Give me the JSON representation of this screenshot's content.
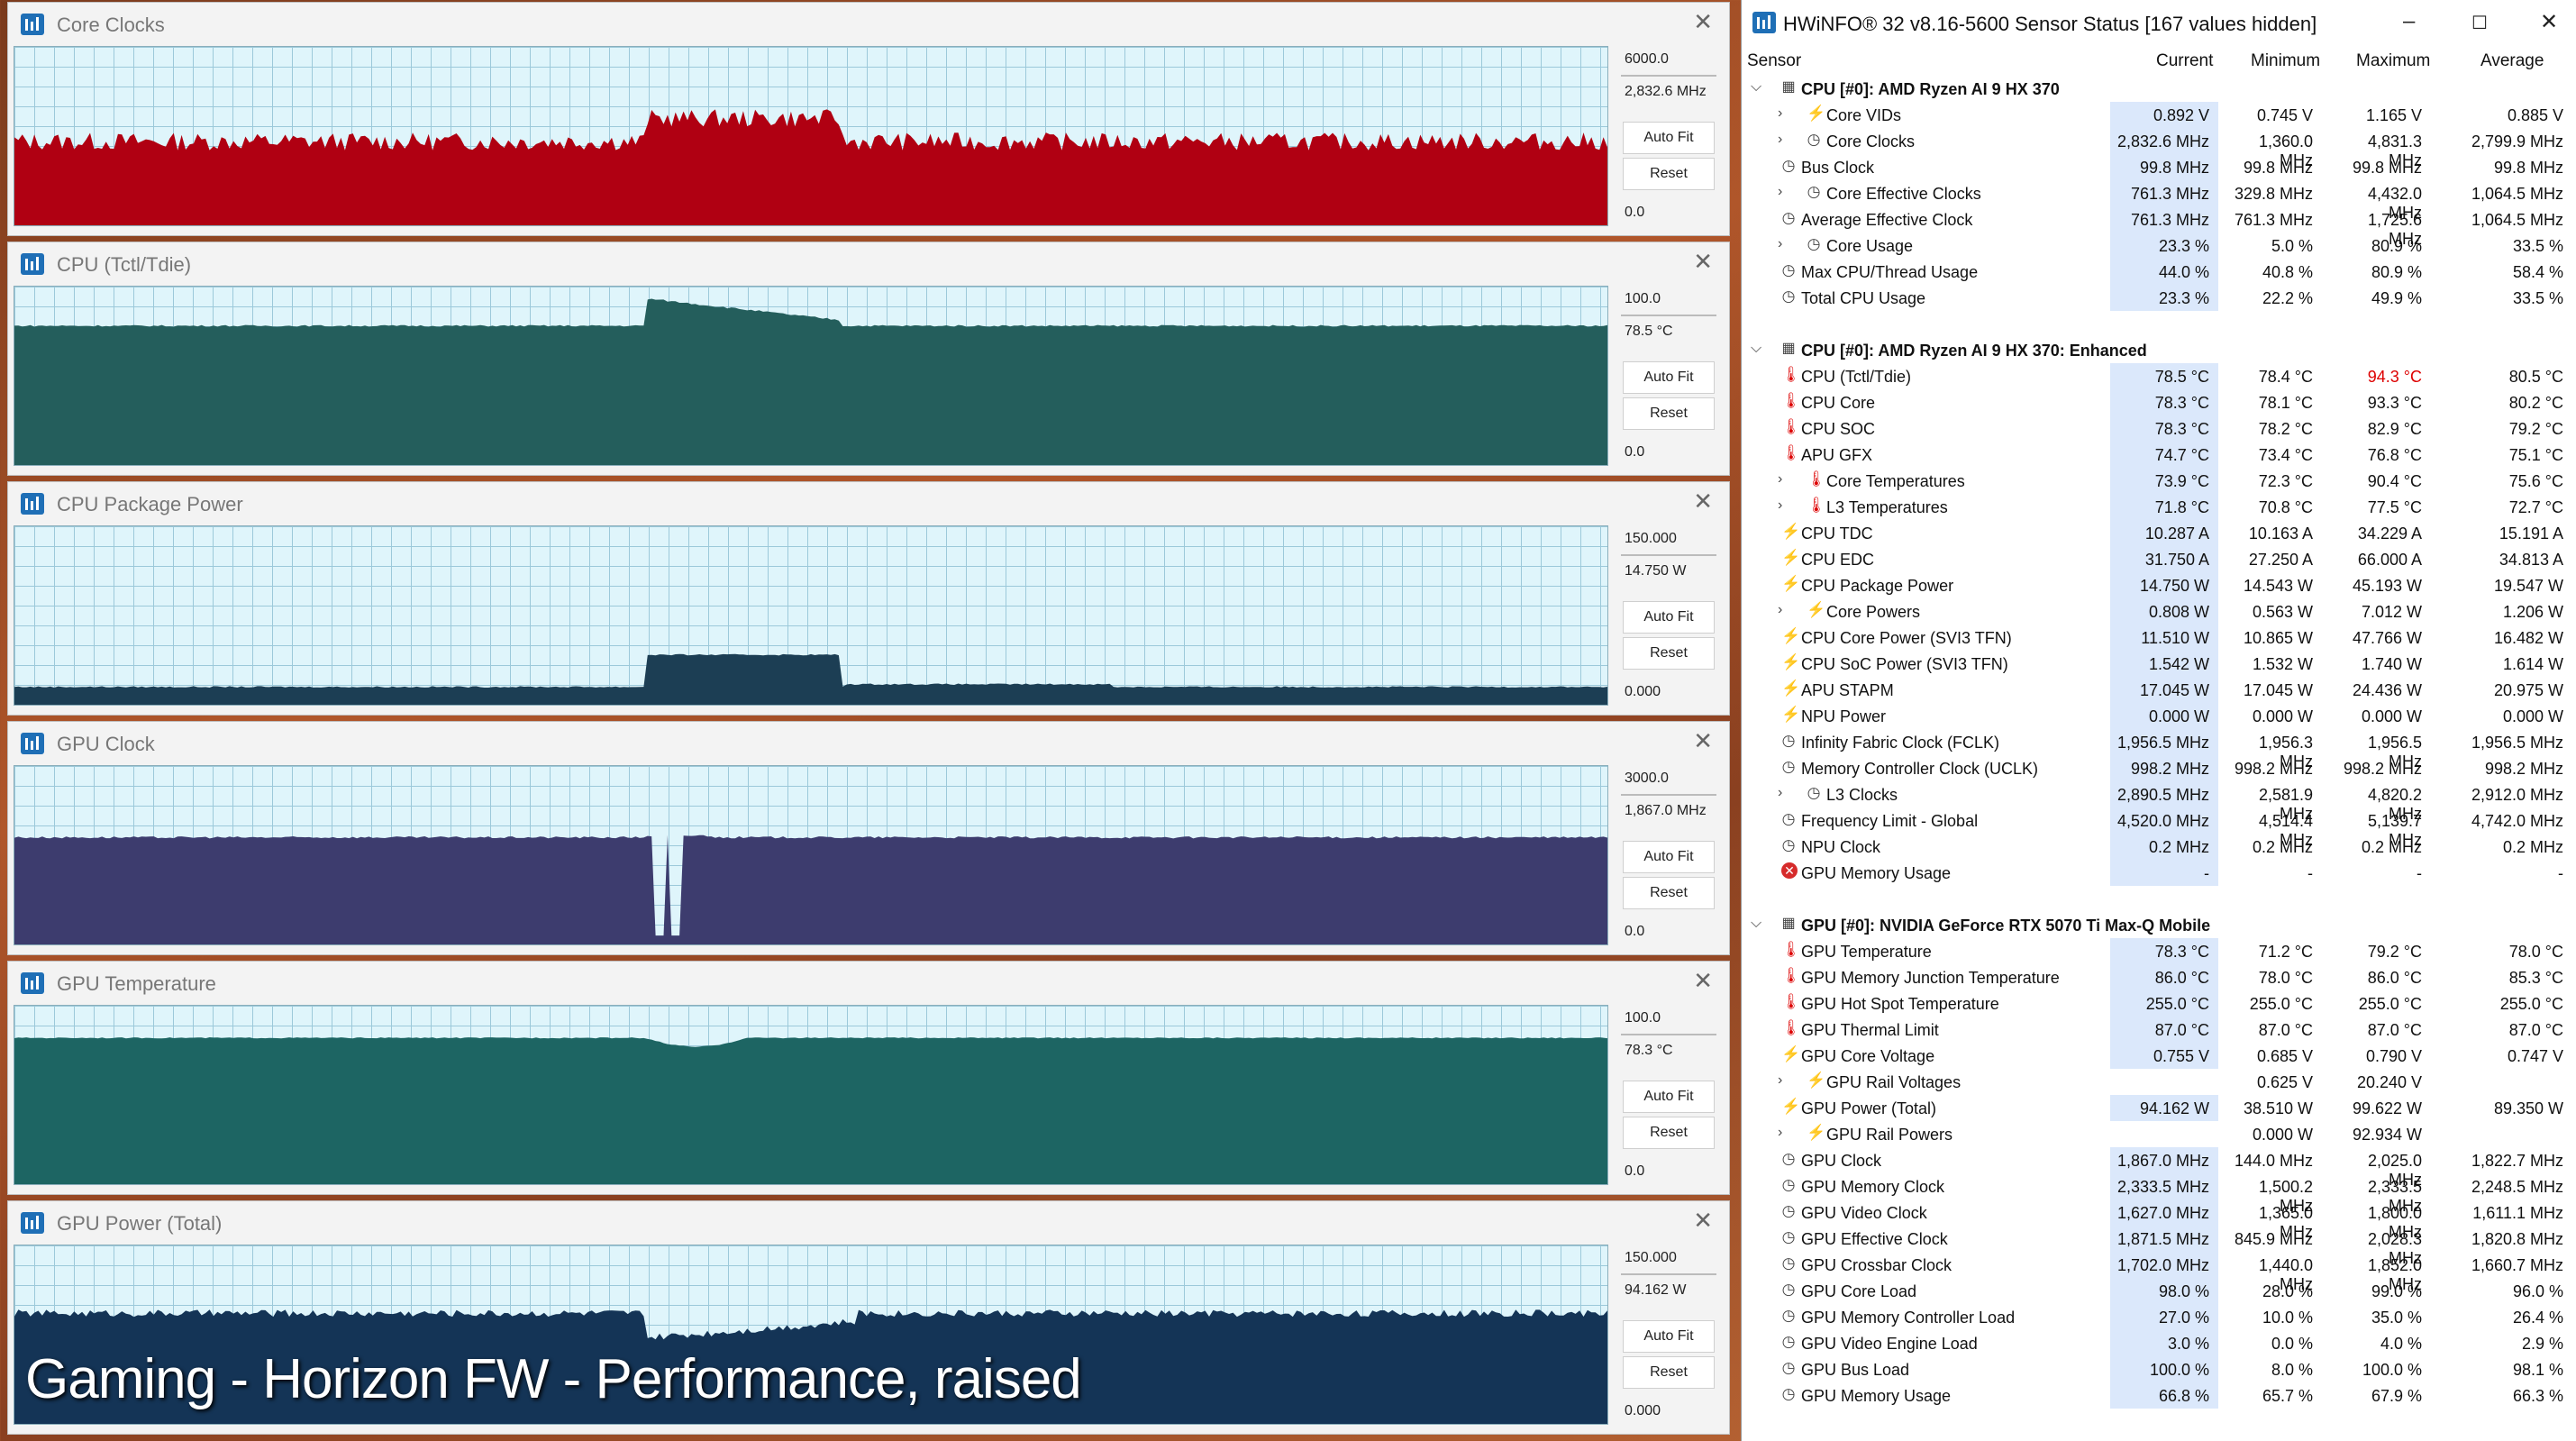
{
  "graphs": [
    {
      "title": "Core Clocks",
      "max": "6000.0",
      "cur": "2,832.6 MHz",
      "min": "0.0",
      "autofit": "Auto Fit",
      "reset": "Reset",
      "color": "#b00012",
      "baseline": 0.47,
      "peak": 0.6,
      "noise": 0.05,
      "vf": "graph",
      "dips": false
    },
    {
      "title": "CPU (Tctl/Tdie)",
      "max": "100.0",
      "cur": "78.5 °C",
      "min": "0.0",
      "autofit": "Auto Fit",
      "reset": "Reset",
      "color": "#245e5c",
      "baseline": 0.78,
      "peak": 0.93,
      "noise": 0.005,
      "vf": "graph",
      "dips": false
    },
    {
      "title": "CPU Package Power",
      "max": "150.000",
      "cur": "14.750 W",
      "min": "0.000",
      "autofit": "Auto Fit",
      "reset": "Reset",
      "color": "#1c3e54",
      "baseline": 0.1,
      "peak": 0.28,
      "noise": 0.004,
      "vf": "graph",
      "dips": false
    },
    {
      "title": "GPU Clock",
      "max": "3000.0",
      "cur": "1,867.0 MHz",
      "min": "0.0",
      "autofit": "Auto Fit",
      "reset": "Reset",
      "color": "#3d3c6e",
      "baseline": 0.6,
      "peak": 0.6,
      "noise": 0.006,
      "vf": "graph",
      "dips": true
    },
    {
      "title": "GPU Temperature",
      "max": "100.0",
      "cur": "78.3 °C",
      "min": "0.0",
      "autofit": "Auto Fit",
      "reset": "Reset",
      "color": "#1d6563",
      "baseline": 0.82,
      "peak": 0.82,
      "noise": 0.003,
      "vf": "graph",
      "dips": false
    },
    {
      "title": "GPU Power (Total)",
      "max": "150.000",
      "cur": "94.162 W",
      "min": "0.000",
      "autofit": "Auto Fit",
      "reset": "Reset",
      "color": "#143456",
      "baseline": 0.62,
      "peak": 0.62,
      "noise": 0.02,
      "vf": "graph",
      "dips": false
    }
  ],
  "caption": "Gaming - Horizon FW - Performance, raised",
  "hwinfo": {
    "title": "HWiNFO® 32 v8.16-5600 Sensor Status [167 values hidden]",
    "columns": [
      "Sensor",
      "Current",
      "Minimum",
      "Maximum",
      "Average"
    ],
    "rows": [
      {
        "type": "group",
        "name": "CPU [#0]: AMD Ryzen AI 9 HX 370"
      },
      {
        "type": "row",
        "exp": true,
        "icon": "bolt",
        "name": "Core VIDs",
        "cur": "0.892 V",
        "min": "0.745 V",
        "max": "1.165 V",
        "avg": "0.885 V"
      },
      {
        "type": "row",
        "exp": true,
        "icon": "clock",
        "name": "Core Clocks",
        "cur": "2,832.6 MHz",
        "min": "1,360.0 MHz",
        "max": "4,831.3 MHz",
        "avg": "2,799.9 MHz"
      },
      {
        "type": "row",
        "exp": false,
        "icon": "clock",
        "name": "Bus Clock",
        "cur": "99.8 MHz",
        "min": "99.8 MHz",
        "max": "99.8 MHz",
        "avg": "99.8 MHz"
      },
      {
        "type": "row",
        "exp": true,
        "icon": "clock",
        "name": "Core Effective Clocks",
        "cur": "761.3 MHz",
        "min": "329.8 MHz",
        "max": "4,432.0 MHz",
        "avg": "1,064.5 MHz"
      },
      {
        "type": "row",
        "exp": false,
        "icon": "clock",
        "name": "Average Effective Clock",
        "cur": "761.3 MHz",
        "min": "761.3 MHz",
        "max": "1,725.6 MHz",
        "avg": "1,064.5 MHz"
      },
      {
        "type": "row",
        "exp": true,
        "icon": "clock",
        "name": "Core Usage",
        "cur": "23.3 %",
        "min": "5.0 %",
        "max": "80.9 %",
        "avg": "33.5 %"
      },
      {
        "type": "row",
        "exp": false,
        "icon": "clock",
        "name": "Max CPU/Thread Usage",
        "cur": "44.0 %",
        "min": "40.8 %",
        "max": "80.9 %",
        "avg": "58.4 %"
      },
      {
        "type": "row",
        "exp": false,
        "icon": "clock",
        "name": "Total CPU Usage",
        "cur": "23.3 %",
        "min": "22.2 %",
        "max": "49.9 %",
        "avg": "33.5 %"
      },
      {
        "type": "blank"
      },
      {
        "type": "group",
        "name": "CPU [#0]: AMD Ryzen AI 9 HX 370: Enhanced"
      },
      {
        "type": "row",
        "exp": false,
        "icon": "therm",
        "name": "CPU (Tctl/Tdie)",
        "cur": "78.5 °C",
        "min": "78.4 °C",
        "max": "94.3 °C",
        "maxred": true,
        "avg": "80.5 °C"
      },
      {
        "type": "row",
        "exp": false,
        "icon": "therm",
        "name": "CPU Core",
        "cur": "78.3 °C",
        "min": "78.1 °C",
        "max": "93.3 °C",
        "avg": "80.2 °C"
      },
      {
        "type": "row",
        "exp": false,
        "icon": "therm",
        "name": "CPU SOC",
        "cur": "78.3 °C",
        "min": "78.2 °C",
        "max": "82.9 °C",
        "avg": "79.2 °C"
      },
      {
        "type": "row",
        "exp": false,
        "icon": "therm",
        "name": "APU GFX",
        "cur": "74.7 °C",
        "min": "73.4 °C",
        "max": "76.8 °C",
        "avg": "75.1 °C"
      },
      {
        "type": "row",
        "exp": true,
        "icon": "therm",
        "name": "Core Temperatures",
        "cur": "73.9 °C",
        "min": "72.3 °C",
        "max": "90.4 °C",
        "avg": "75.6 °C"
      },
      {
        "type": "row",
        "exp": true,
        "icon": "therm",
        "name": "L3 Temperatures",
        "cur": "71.8 °C",
        "min": "70.8 °C",
        "max": "77.5 °C",
        "avg": "72.7 °C"
      },
      {
        "type": "row",
        "exp": false,
        "icon": "bolt",
        "name": "CPU TDC",
        "cur": "10.287 A",
        "min": "10.163 A",
        "max": "34.229 A",
        "avg": "15.191 A"
      },
      {
        "type": "row",
        "exp": false,
        "icon": "bolt",
        "name": "CPU EDC",
        "cur": "31.750 A",
        "min": "27.250 A",
        "max": "66.000 A",
        "avg": "34.813 A"
      },
      {
        "type": "row",
        "exp": false,
        "icon": "bolt",
        "name": "CPU Package Power",
        "cur": "14.750 W",
        "min": "14.543 W",
        "max": "45.193 W",
        "avg": "19.547 W"
      },
      {
        "type": "row",
        "exp": true,
        "icon": "bolt",
        "name": "Core Powers",
        "cur": "0.808 W",
        "min": "0.563 W",
        "max": "7.012 W",
        "avg": "1.206 W"
      },
      {
        "type": "row",
        "exp": false,
        "icon": "bolt",
        "name": "CPU Core Power (SVI3 TFN)",
        "cur": "11.510 W",
        "min": "10.865 W",
        "max": "47.766 W",
        "avg": "16.482 W"
      },
      {
        "type": "row",
        "exp": false,
        "icon": "bolt",
        "name": "CPU SoC Power (SVI3 TFN)",
        "cur": "1.542 W",
        "min": "1.532 W",
        "max": "1.740 W",
        "avg": "1.614 W"
      },
      {
        "type": "row",
        "exp": false,
        "icon": "bolt",
        "name": "APU STAPM",
        "cur": "17.045 W",
        "min": "17.045 W",
        "max": "24.436 W",
        "avg": "20.975 W"
      },
      {
        "type": "row",
        "exp": false,
        "icon": "bolt",
        "name": "NPU Power",
        "cur": "0.000 W",
        "min": "0.000 W",
        "max": "0.000 W",
        "avg": "0.000 W"
      },
      {
        "type": "row",
        "exp": false,
        "icon": "clock",
        "name": "Infinity Fabric Clock (FCLK)",
        "cur": "1,956.5 MHz",
        "min": "1,956.3 MHz",
        "max": "1,956.5 MHz",
        "avg": "1,956.5 MHz"
      },
      {
        "type": "row",
        "exp": false,
        "icon": "clock",
        "name": "Memory Controller Clock (UCLK)",
        "cur": "998.2 MHz",
        "min": "998.2 MHz",
        "max": "998.2 MHz",
        "avg": "998.2 MHz"
      },
      {
        "type": "row",
        "exp": true,
        "icon": "clock",
        "name": "L3 Clocks",
        "cur": "2,890.5 MHz",
        "min": "2,581.9 MHz",
        "max": "4,820.2 MHz",
        "avg": "2,912.0 MHz"
      },
      {
        "type": "row",
        "exp": false,
        "icon": "clock",
        "name": "Frequency Limit - Global",
        "cur": "4,520.0 MHz",
        "min": "4,514.4 MHz",
        "max": "5,139.7 MHz",
        "avg": "4,742.0 MHz"
      },
      {
        "type": "row",
        "exp": false,
        "icon": "clock",
        "name": "NPU Clock",
        "cur": "0.2 MHz",
        "min": "0.2 MHz",
        "max": "0.2 MHz",
        "avg": "0.2 MHz"
      },
      {
        "type": "row",
        "exp": false,
        "icon": "err",
        "name": "GPU Memory Usage",
        "cur": "-",
        "min": "-",
        "max": "-",
        "avg": "-"
      },
      {
        "type": "blank"
      },
      {
        "type": "group",
        "name": "GPU [#0]: NVIDIA  GeForce RTX 5070 Ti Max-Q Mobile"
      },
      {
        "type": "row",
        "exp": false,
        "icon": "therm",
        "name": "GPU Temperature",
        "cur": "78.3 °C",
        "min": "71.2 °C",
        "max": "79.2 °C",
        "avg": "78.0 °C"
      },
      {
        "type": "row",
        "exp": false,
        "icon": "therm",
        "name": "GPU Memory Junction Temperature",
        "cur": "86.0 °C",
        "min": "78.0 °C",
        "max": "86.0 °C",
        "avg": "85.3 °C"
      },
      {
        "type": "row",
        "exp": false,
        "icon": "therm",
        "name": "GPU Hot Spot Temperature",
        "cur": "255.0 °C",
        "min": "255.0 °C",
        "max": "255.0 °C",
        "avg": "255.0 °C"
      },
      {
        "type": "row",
        "exp": false,
        "icon": "therm",
        "name": "GPU Thermal Limit",
        "cur": "87.0 °C",
        "min": "87.0 °C",
        "max": "87.0 °C",
        "avg": "87.0 °C"
      },
      {
        "type": "row",
        "exp": false,
        "icon": "bolt",
        "name": "GPU Core Voltage",
        "cur": "0.755 V",
        "min": "0.685 V",
        "max": "0.790 V",
        "avg": "0.747 V"
      },
      {
        "type": "row",
        "exp": true,
        "icon": "bolt",
        "name": "GPU Rail Voltages",
        "cur": "",
        "min": "0.625 V",
        "max": "20.240 V",
        "avg": ""
      },
      {
        "type": "row",
        "exp": false,
        "icon": "bolt",
        "name": "GPU Power (Total)",
        "cur": "94.162 W",
        "min": "38.510 W",
        "max": "99.622 W",
        "avg": "89.350 W"
      },
      {
        "type": "row",
        "exp": true,
        "icon": "bolt",
        "name": "GPU Rail Powers",
        "cur": "",
        "min": "0.000 W",
        "max": "92.934 W",
        "avg": ""
      },
      {
        "type": "row",
        "exp": false,
        "icon": "clock",
        "name": "GPU Clock",
        "cur": "1,867.0 MHz",
        "min": "144.0 MHz",
        "max": "2,025.0 MHz",
        "avg": "1,822.7 MHz"
      },
      {
        "type": "row",
        "exp": false,
        "icon": "clock",
        "name": "GPU Memory Clock",
        "cur": "2,333.5 MHz",
        "min": "1,500.2 MHz",
        "max": "2,333.5 MHz",
        "avg": "2,248.5 MHz"
      },
      {
        "type": "row",
        "exp": false,
        "icon": "clock",
        "name": "GPU Video Clock",
        "cur": "1,627.0 MHz",
        "min": "1,365.0 MHz",
        "max": "1,800.0 MHz",
        "avg": "1,611.1 MHz"
      },
      {
        "type": "row",
        "exp": false,
        "icon": "clock",
        "name": "GPU Effective Clock",
        "cur": "1,871.5 MHz",
        "min": "845.9 MHz",
        "max": "2,028.3 MHz",
        "avg": "1,820.8 MHz"
      },
      {
        "type": "row",
        "exp": false,
        "icon": "clock",
        "name": "GPU Crossbar Clock",
        "cur": "1,702.0 MHz",
        "min": "1,440.0 MHz",
        "max": "1,852.0 MHz",
        "avg": "1,660.7 MHz"
      },
      {
        "type": "row",
        "exp": false,
        "icon": "clock",
        "name": "GPU Core Load",
        "cur": "98.0 %",
        "min": "28.0 %",
        "max": "99.0 %",
        "avg": "96.0 %"
      },
      {
        "type": "row",
        "exp": false,
        "icon": "clock",
        "name": "GPU Memory Controller Load",
        "cur": "27.0 %",
        "min": "10.0 %",
        "max": "35.0 %",
        "avg": "26.4 %"
      },
      {
        "type": "row",
        "exp": false,
        "icon": "clock",
        "name": "GPU Video Engine Load",
        "cur": "3.0 %",
        "min": "0.0 %",
        "max": "4.0 %",
        "avg": "2.9 %"
      },
      {
        "type": "row",
        "exp": false,
        "icon": "clock",
        "name": "GPU Bus Load",
        "cur": "100.0 %",
        "min": "8.0 %",
        "max": "100.0 %",
        "avg": "98.1 %"
      },
      {
        "type": "row",
        "exp": false,
        "icon": "clock",
        "name": "GPU Memory Usage",
        "cur": "66.8 %",
        "min": "65.7 %",
        "max": "67.9 %",
        "avg": "66.3 %"
      }
    ]
  }
}
